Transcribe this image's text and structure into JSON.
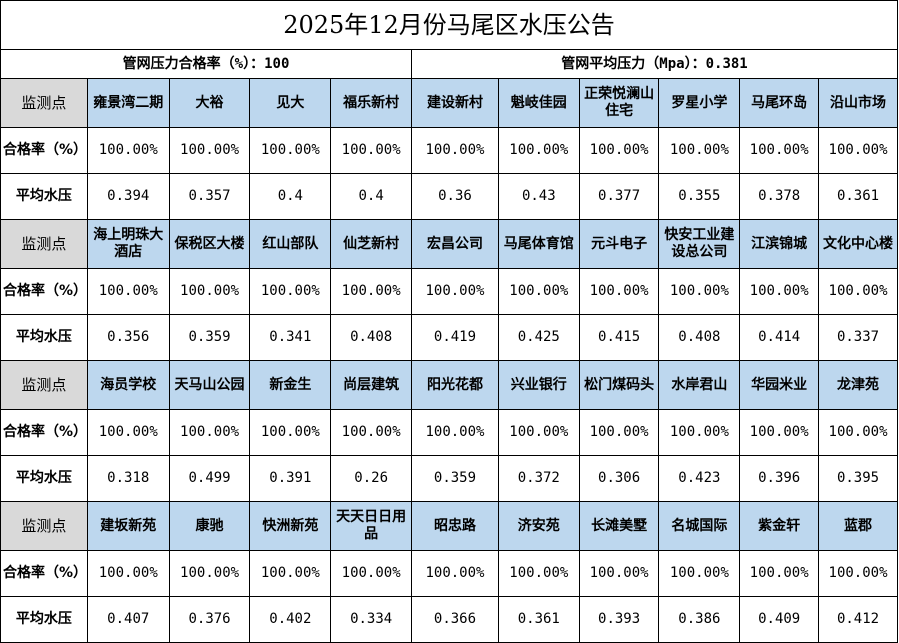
{
  "title": "2025年12月份马尾区水压公告",
  "summary": {
    "qualified_rate": "管网压力合格率（%）：100",
    "avg_pressure": "管网平均压力（Mpa）：0.381"
  },
  "labels": {
    "site": "监测点",
    "rate": "合格率（%）",
    "pressure": "平均水压"
  },
  "blocks": [
    {
      "sites": [
        {
          "name": "雍景湾二期",
          "rate": "100.00%",
          "pressure": "0.394"
        },
        {
          "name": "大裕",
          "rate": "100.00%",
          "pressure": "0.357"
        },
        {
          "name": "见大",
          "rate": "100.00%",
          "pressure": "0.4"
        },
        {
          "name": "福乐新村",
          "rate": "100.00%",
          "pressure": "0.4"
        },
        {
          "name": "建设新村",
          "rate": "100.00%",
          "pressure": "0.36"
        },
        {
          "name": "魁岐佳园",
          "rate": "100.00%",
          "pressure": "0.43"
        },
        {
          "name": "正荣悦澜山住宅",
          "rate": "100.00%",
          "pressure": "0.377"
        },
        {
          "name": "罗星小学",
          "rate": "100.00%",
          "pressure": "0.355"
        },
        {
          "name": "马尾环岛",
          "rate": "100.00%",
          "pressure": "0.378"
        },
        {
          "name": "沿山市场",
          "rate": "100.00%",
          "pressure": "0.361"
        }
      ]
    },
    {
      "sites": [
        {
          "name": "海上明珠大酒店",
          "rate": "100.00%",
          "pressure": "0.356"
        },
        {
          "name": "保税区大楼",
          "rate": "100.00%",
          "pressure": "0.359"
        },
        {
          "name": "红山部队",
          "rate": "100.00%",
          "pressure": "0.341"
        },
        {
          "name": "仙芝新村",
          "rate": "100.00%",
          "pressure": "0.408"
        },
        {
          "name": "宏昌公司",
          "rate": "100.00%",
          "pressure": "0.419"
        },
        {
          "name": "马尾体育馆",
          "rate": "100.00%",
          "pressure": "0.425"
        },
        {
          "name": "元斗电子",
          "rate": "100.00%",
          "pressure": "0.415"
        },
        {
          "name": "快安工业建设总公司",
          "rate": "100.00%",
          "pressure": "0.408"
        },
        {
          "name": "江滨锦城",
          "rate": "100.00%",
          "pressure": "0.414"
        },
        {
          "name": "文化中心楼",
          "rate": "100.00%",
          "pressure": "0.337"
        }
      ]
    },
    {
      "sites": [
        {
          "name": "海员学校",
          "rate": "100.00%",
          "pressure": "0.318"
        },
        {
          "name": "天马山公园",
          "rate": "100.00%",
          "pressure": "0.499"
        },
        {
          "name": "新金生",
          "rate": "100.00%",
          "pressure": "0.391"
        },
        {
          "name": "尚层建筑",
          "rate": "100.00%",
          "pressure": "0.26"
        },
        {
          "name": "阳光花都",
          "rate": "100.00%",
          "pressure": "0.359"
        },
        {
          "name": "兴业银行",
          "rate": "100.00%",
          "pressure": "0.372"
        },
        {
          "name": "松门煤码头",
          "rate": "100.00%",
          "pressure": "0.306"
        },
        {
          "name": "水岸君山",
          "rate": "100.00%",
          "pressure": "0.423"
        },
        {
          "name": "华园米业",
          "rate": "100.00%",
          "pressure": "0.396"
        },
        {
          "name": "龙津苑",
          "rate": "100.00%",
          "pressure": "0.395"
        }
      ]
    },
    {
      "sites": [
        {
          "name": "建坂新苑",
          "rate": "100.00%",
          "pressure": "0.407"
        },
        {
          "name": "康驰",
          "rate": "100.00%",
          "pressure": "0.376"
        },
        {
          "name": "快洲新苑",
          "rate": "100.00%",
          "pressure": "0.402"
        },
        {
          "name": "天天日日用品",
          "rate": "100.00%",
          "pressure": "0.334"
        },
        {
          "name": "昭忠路",
          "rate": "100.00%",
          "pressure": "0.366"
        },
        {
          "name": "济安苑",
          "rate": "100.00%",
          "pressure": "0.361"
        },
        {
          "name": "长滩美墅",
          "rate": "100.00%",
          "pressure": "0.393"
        },
        {
          "name": "名城国际",
          "rate": "100.00%",
          "pressure": "0.386"
        },
        {
          "name": "紫金轩",
          "rate": "100.00%",
          "pressure": "0.409"
        },
        {
          "name": "蓝郡",
          "rate": "100.00%",
          "pressure": "0.412"
        }
      ]
    }
  ]
}
